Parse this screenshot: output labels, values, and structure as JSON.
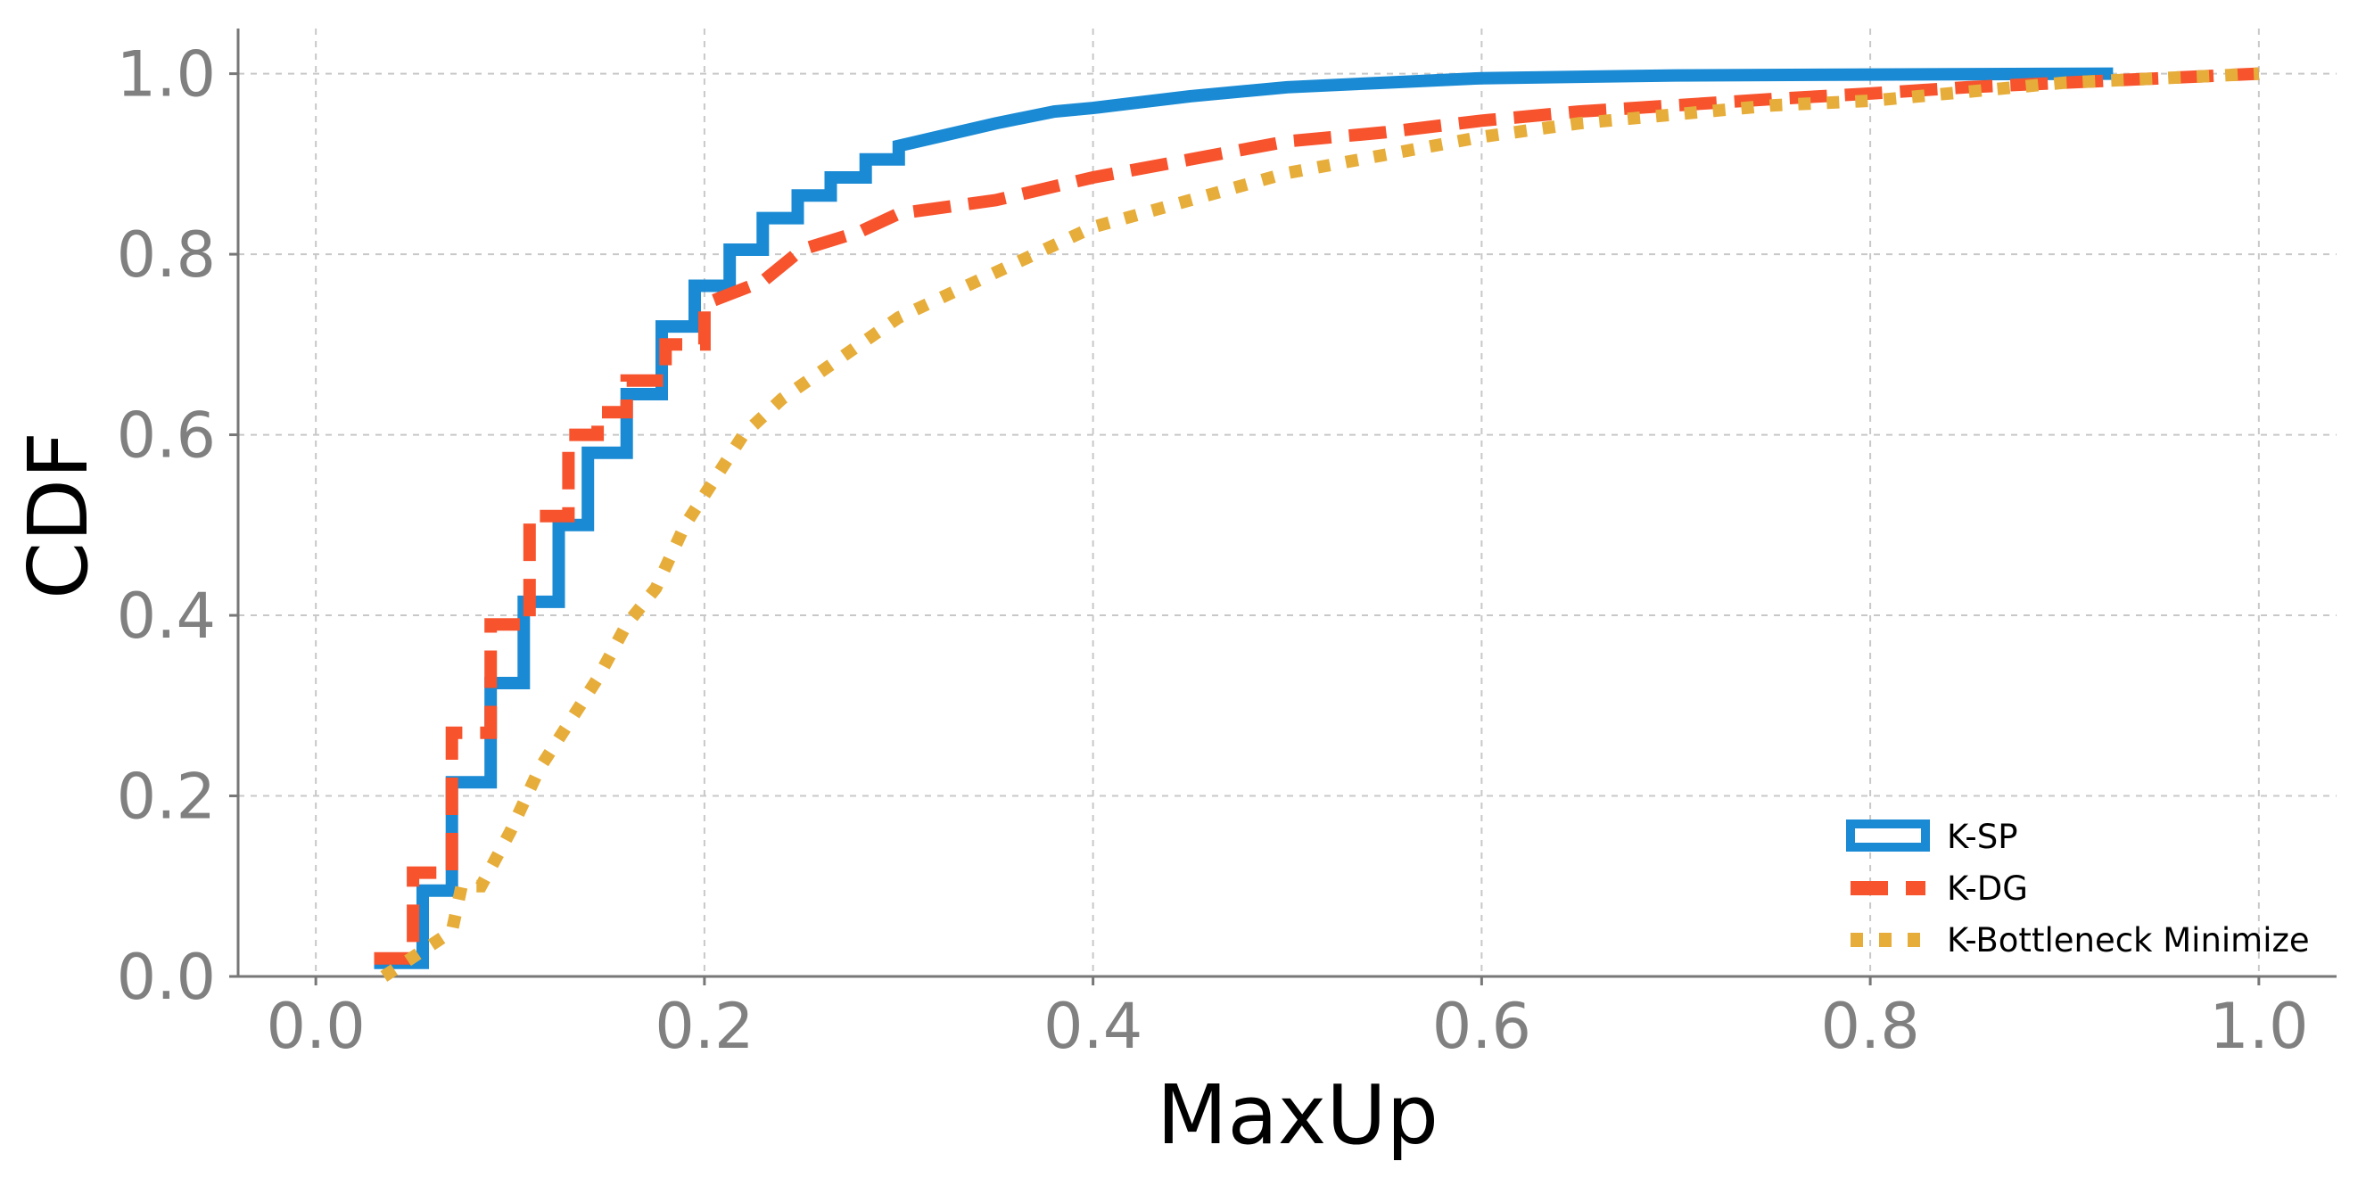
{
  "chart_data": {
    "type": "line",
    "subtype": "step-cdf",
    "title": "",
    "xlabel": "MaxUp",
    "ylabel": "CDF",
    "xlim": [
      -0.04,
      1.04
    ],
    "ylim": [
      0.0,
      1.05
    ],
    "x_ticks": [
      0.0,
      0.2,
      0.4,
      0.6,
      0.8,
      1.0
    ],
    "x_tick_labels": [
      "0.0",
      "0.2",
      "0.4",
      "0.6",
      "0.8",
      "1.0"
    ],
    "y_ticks": [
      0.0,
      0.2,
      0.4,
      0.6,
      0.8,
      1.0
    ],
    "y_tick_labels": [
      "0.0",
      "0.2",
      "0.4",
      "0.6",
      "0.8",
      "1.0"
    ],
    "grid": true,
    "legend_position": "bottom-right",
    "series": [
      {
        "name": "K-SP",
        "color": "#1a8ad4",
        "style": "solid",
        "x": [
          0.03,
          0.055,
          0.055,
          0.07,
          0.07,
          0.09,
          0.09,
          0.107,
          0.107,
          0.125,
          0.125,
          0.14,
          0.14,
          0.16,
          0.16,
          0.178,
          0.178,
          0.195,
          0.195,
          0.213,
          0.213,
          0.23,
          0.23,
          0.248,
          0.248,
          0.265,
          0.265,
          0.283,
          0.283,
          0.3,
          0.3,
          0.32,
          0.35,
          0.38,
          0.4,
          0.45,
          0.5,
          0.55,
          0.6,
          0.7,
          0.8,
          0.925
        ],
        "y": [
          0.015,
          0.015,
          0.095,
          0.095,
          0.215,
          0.215,
          0.325,
          0.325,
          0.415,
          0.415,
          0.5,
          0.5,
          0.58,
          0.58,
          0.645,
          0.645,
          0.72,
          0.72,
          0.765,
          0.765,
          0.805,
          0.805,
          0.84,
          0.84,
          0.865,
          0.865,
          0.885,
          0.885,
          0.905,
          0.905,
          0.92,
          0.93,
          0.945,
          0.958,
          0.962,
          0.975,
          0.985,
          0.99,
          0.995,
          0.998,
          0.999,
          1.0
        ]
      },
      {
        "name": "K-DG",
        "color": "#f7532d",
        "style": "dashed",
        "x": [
          0.03,
          0.05,
          0.05,
          0.07,
          0.07,
          0.09,
          0.09,
          0.11,
          0.11,
          0.13,
          0.13,
          0.145,
          0.145,
          0.16,
          0.16,
          0.18,
          0.18,
          0.2,
          0.2,
          0.23,
          0.25,
          0.28,
          0.3,
          0.35,
          0.4,
          0.45,
          0.5,
          0.55,
          0.6,
          0.65,
          0.7,
          0.75,
          0.8,
          0.85,
          0.9,
          0.95,
          1.0
        ],
        "y": [
          0.02,
          0.02,
          0.115,
          0.115,
          0.27,
          0.27,
          0.39,
          0.39,
          0.51,
          0.51,
          0.6,
          0.6,
          0.625,
          0.625,
          0.66,
          0.66,
          0.7,
          0.7,
          0.745,
          0.77,
          0.805,
          0.825,
          0.845,
          0.86,
          0.885,
          0.905,
          0.925,
          0.935,
          0.948,
          0.958,
          0.965,
          0.972,
          0.978,
          0.985,
          0.99,
          0.995,
          1.0
        ]
      },
      {
        "name": "K-Bottleneck Minimize",
        "color": "#e6ad3a",
        "style": "dotted",
        "x": [
          0.035,
          0.07,
          0.075,
          0.085,
          0.1,
          0.115,
          0.13,
          0.145,
          0.16,
          0.175,
          0.19,
          0.205,
          0.22,
          0.24,
          0.26,
          0.28,
          0.3,
          0.33,
          0.36,
          0.4,
          0.45,
          0.5,
          0.55,
          0.6,
          0.65,
          0.7,
          0.75,
          0.8,
          0.85,
          0.9,
          0.95,
          1.0
        ],
        "y": [
          0.0,
          0.05,
          0.1,
          0.1,
          0.16,
          0.23,
          0.28,
          0.33,
          0.39,
          0.43,
          0.5,
          0.55,
          0.6,
          0.64,
          0.67,
          0.7,
          0.73,
          0.76,
          0.79,
          0.83,
          0.86,
          0.89,
          0.91,
          0.93,
          0.945,
          0.955,
          0.965,
          0.97,
          0.98,
          0.99,
          0.995,
          1.0
        ]
      }
    ]
  }
}
